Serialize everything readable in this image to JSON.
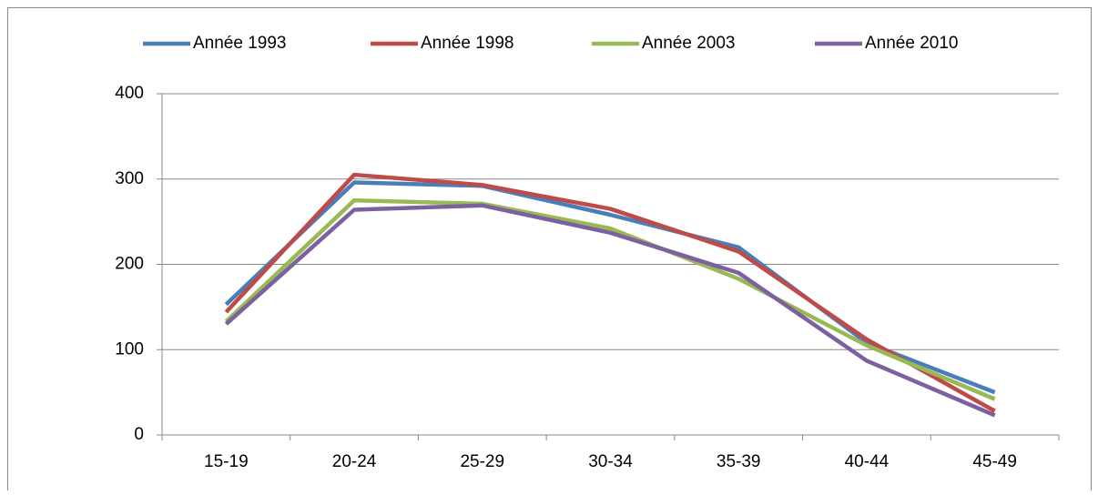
{
  "chart_data": {
    "type": "line",
    "categories": [
      "15-19",
      "20-24",
      "25-29",
      "30-34",
      "35-39",
      "40-44",
      "45-49"
    ],
    "series": [
      {
        "name": "Année 1993",
        "color": "#4a7ebb",
        "values": [
          153,
          296,
          292,
          258,
          220,
          108,
          50
        ]
      },
      {
        "name": "Année 1998",
        "color": "#be4b48",
        "values": [
          144,
          305,
          293,
          265,
          215,
          112,
          28
        ]
      },
      {
        "name": "Année 2003",
        "color": "#98b954",
        "values": [
          133,
          275,
          271,
          242,
          183,
          105,
          42
        ]
      },
      {
        "name": "Année 2010",
        "color": "#7d60a0",
        "values": [
          130,
          264,
          269,
          237,
          190,
          87,
          23
        ]
      }
    ],
    "ylim": [
      0,
      400
    ],
    "yticks": [
      0,
      100,
      200,
      300,
      400
    ],
    "grid": true,
    "legend": "top"
  }
}
